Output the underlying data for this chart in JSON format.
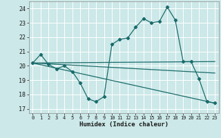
{
  "title": "",
  "xlabel": "Humidex (Indice chaleur)",
  "background_color": "#cce8e8",
  "line_color": "#1a6b6b",
  "grid_color": "#ffffff",
  "xlim": [
    -0.5,
    23.5
  ],
  "ylim": [
    16.7,
    24.5
  ],
  "yticks": [
    17,
    18,
    19,
    20,
    21,
    22,
    23,
    24
  ],
  "xticks": [
    0,
    1,
    2,
    3,
    4,
    5,
    6,
    7,
    8,
    9,
    10,
    11,
    12,
    13,
    14,
    15,
    16,
    17,
    18,
    19,
    20,
    21,
    22,
    23
  ],
  "line1_x": [
    0,
    1,
    2,
    3,
    4,
    5,
    6,
    7,
    8,
    9,
    10,
    11,
    12,
    13,
    14,
    15,
    16,
    17,
    18,
    19,
    20,
    21,
    22,
    23
  ],
  "line1_y": [
    20.2,
    20.8,
    20.1,
    19.8,
    20.0,
    19.6,
    18.8,
    17.7,
    17.5,
    17.85,
    21.5,
    21.85,
    21.95,
    22.7,
    23.3,
    23.0,
    23.1,
    24.1,
    23.2,
    20.3,
    20.3,
    19.1,
    17.5,
    17.4
  ],
  "line2_x": [
    0,
    23
  ],
  "line2_y": [
    20.2,
    20.3
  ],
  "line3_x": [
    0,
    23
  ],
  "line3_y": [
    20.2,
    17.4
  ],
  "line4_x": [
    0,
    23
  ],
  "line4_y": [
    20.2,
    19.5
  ]
}
